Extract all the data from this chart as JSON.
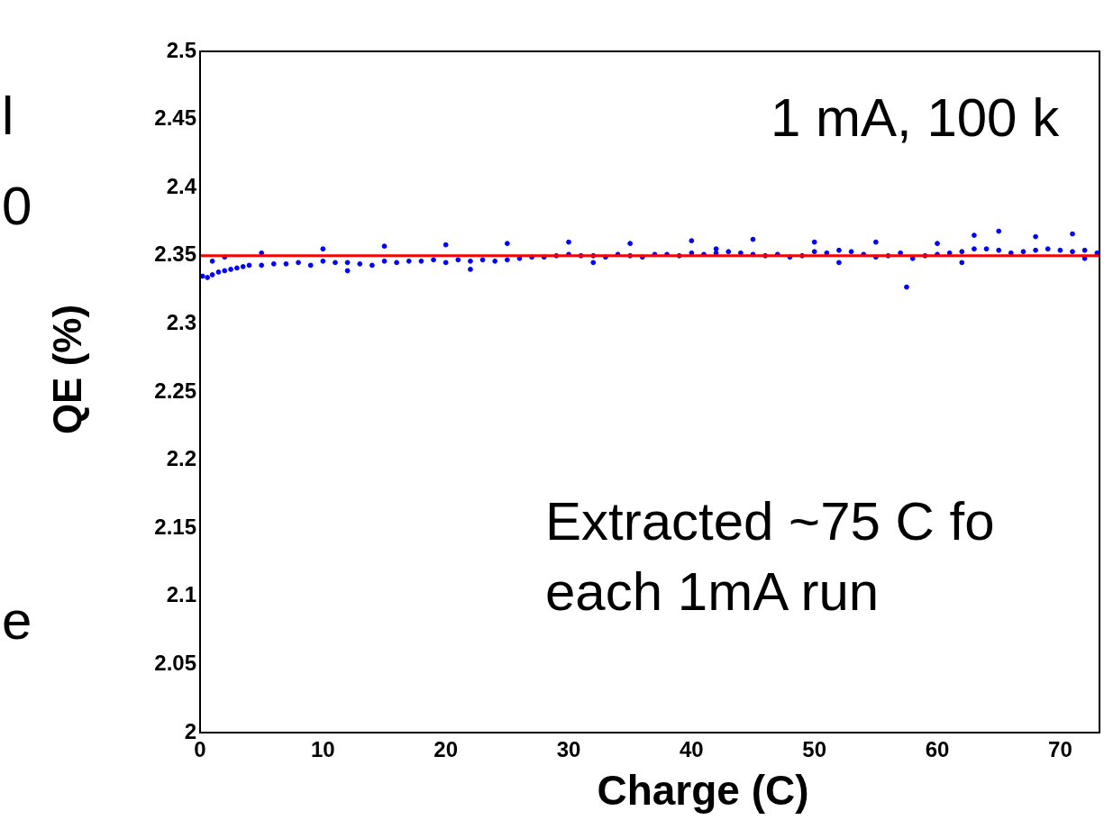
{
  "chart_data": {
    "type": "scatter",
    "xlabel": "Charge (C)",
    "ylabel": "QE (%)",
    "xlim": [
      0,
      73.2
    ],
    "xticks": [
      0,
      10,
      20,
      30,
      40,
      50,
      60,
      70
    ],
    "ylim": [
      2,
      2.5
    ],
    "yticks": [
      2,
      2.05,
      2.1,
      2.15,
      2.2,
      2.25,
      2.3,
      2.35,
      2.4,
      2.45,
      2.5
    ],
    "grid": false,
    "legend": false,
    "marker": "circle",
    "series": [
      {
        "color": "#0000ff",
        "x": [
          0.2,
          0.6,
          1,
          1.5,
          2,
          2.5,
          3,
          3.5,
          4,
          5,
          6,
          7,
          8,
          9,
          10,
          11,
          12,
          13,
          14,
          15,
          16,
          17,
          18,
          19,
          20,
          21,
          22,
          23,
          24,
          25,
          26,
          27,
          28,
          29,
          30,
          31,
          32,
          33,
          34,
          35,
          36,
          37,
          38,
          39,
          40,
          41,
          42,
          43,
          44,
          45,
          46,
          47,
          48,
          49,
          50,
          51,
          52,
          53,
          54,
          55,
          56,
          57,
          58,
          59,
          60,
          61,
          62,
          63,
          64,
          65,
          66,
          67,
          68,
          69,
          70,
          71,
          72,
          73,
          1,
          5,
          10,
          15,
          20,
          25,
          30,
          35,
          40,
          45,
          50,
          55,
          57.5,
          60,
          63,
          65,
          68,
          71,
          2,
          12,
          22,
          32,
          42,
          52,
          62,
          72
        ],
        "values": [
          2.335,
          2.334,
          2.336,
          2.338,
          2.339,
          2.34,
          2.341,
          2.342,
          2.343,
          2.343,
          2.344,
          2.344,
          2.345,
          2.343,
          2.346,
          2.345,
          2.345,
          2.344,
          2.343,
          2.346,
          2.345,
          2.346,
          2.346,
          2.347,
          2.345,
          2.347,
          2.346,
          2.347,
          2.346,
          2.347,
          2.348,
          2.349,
          2.349,
          2.35,
          2.351,
          2.35,
          2.35,
          2.349,
          2.351,
          2.35,
          2.349,
          2.351,
          2.351,
          2.35,
          2.352,
          2.351,
          2.352,
          2.353,
          2.352,
          2.351,
          2.35,
          2.351,
          2.349,
          2.35,
          2.353,
          2.352,
          2.354,
          2.353,
          2.351,
          2.349,
          2.35,
          2.352,
          2.348,
          2.35,
          2.351,
          2.352,
          2.353,
          2.355,
          2.355,
          2.354,
          2.352,
          2.353,
          2.354,
          2.355,
          2.354,
          2.353,
          2.354,
          2.352,
          2.346,
          2.352,
          2.355,
          2.357,
          2.358,
          2.359,
          2.36,
          2.359,
          2.361,
          2.362,
          2.36,
          2.36,
          2.327,
          2.359,
          2.365,
          2.368,
          2.364,
          2.366,
          2.349,
          2.339,
          2.34,
          2.345,
          2.355,
          2.345,
          2.345,
          2.348
        ]
      },
      {
        "color": "#ff0000",
        "type": "line",
        "marker": "none",
        "x": [
          0,
          73.2
        ],
        "values": [
          2.35,
          2.35
        ]
      }
    ],
    "annotations": [
      "1 mA, 100 k",
      "Extracted ~75 C fo\neach 1mA run",
      "l",
      "0",
      "e"
    ]
  }
}
